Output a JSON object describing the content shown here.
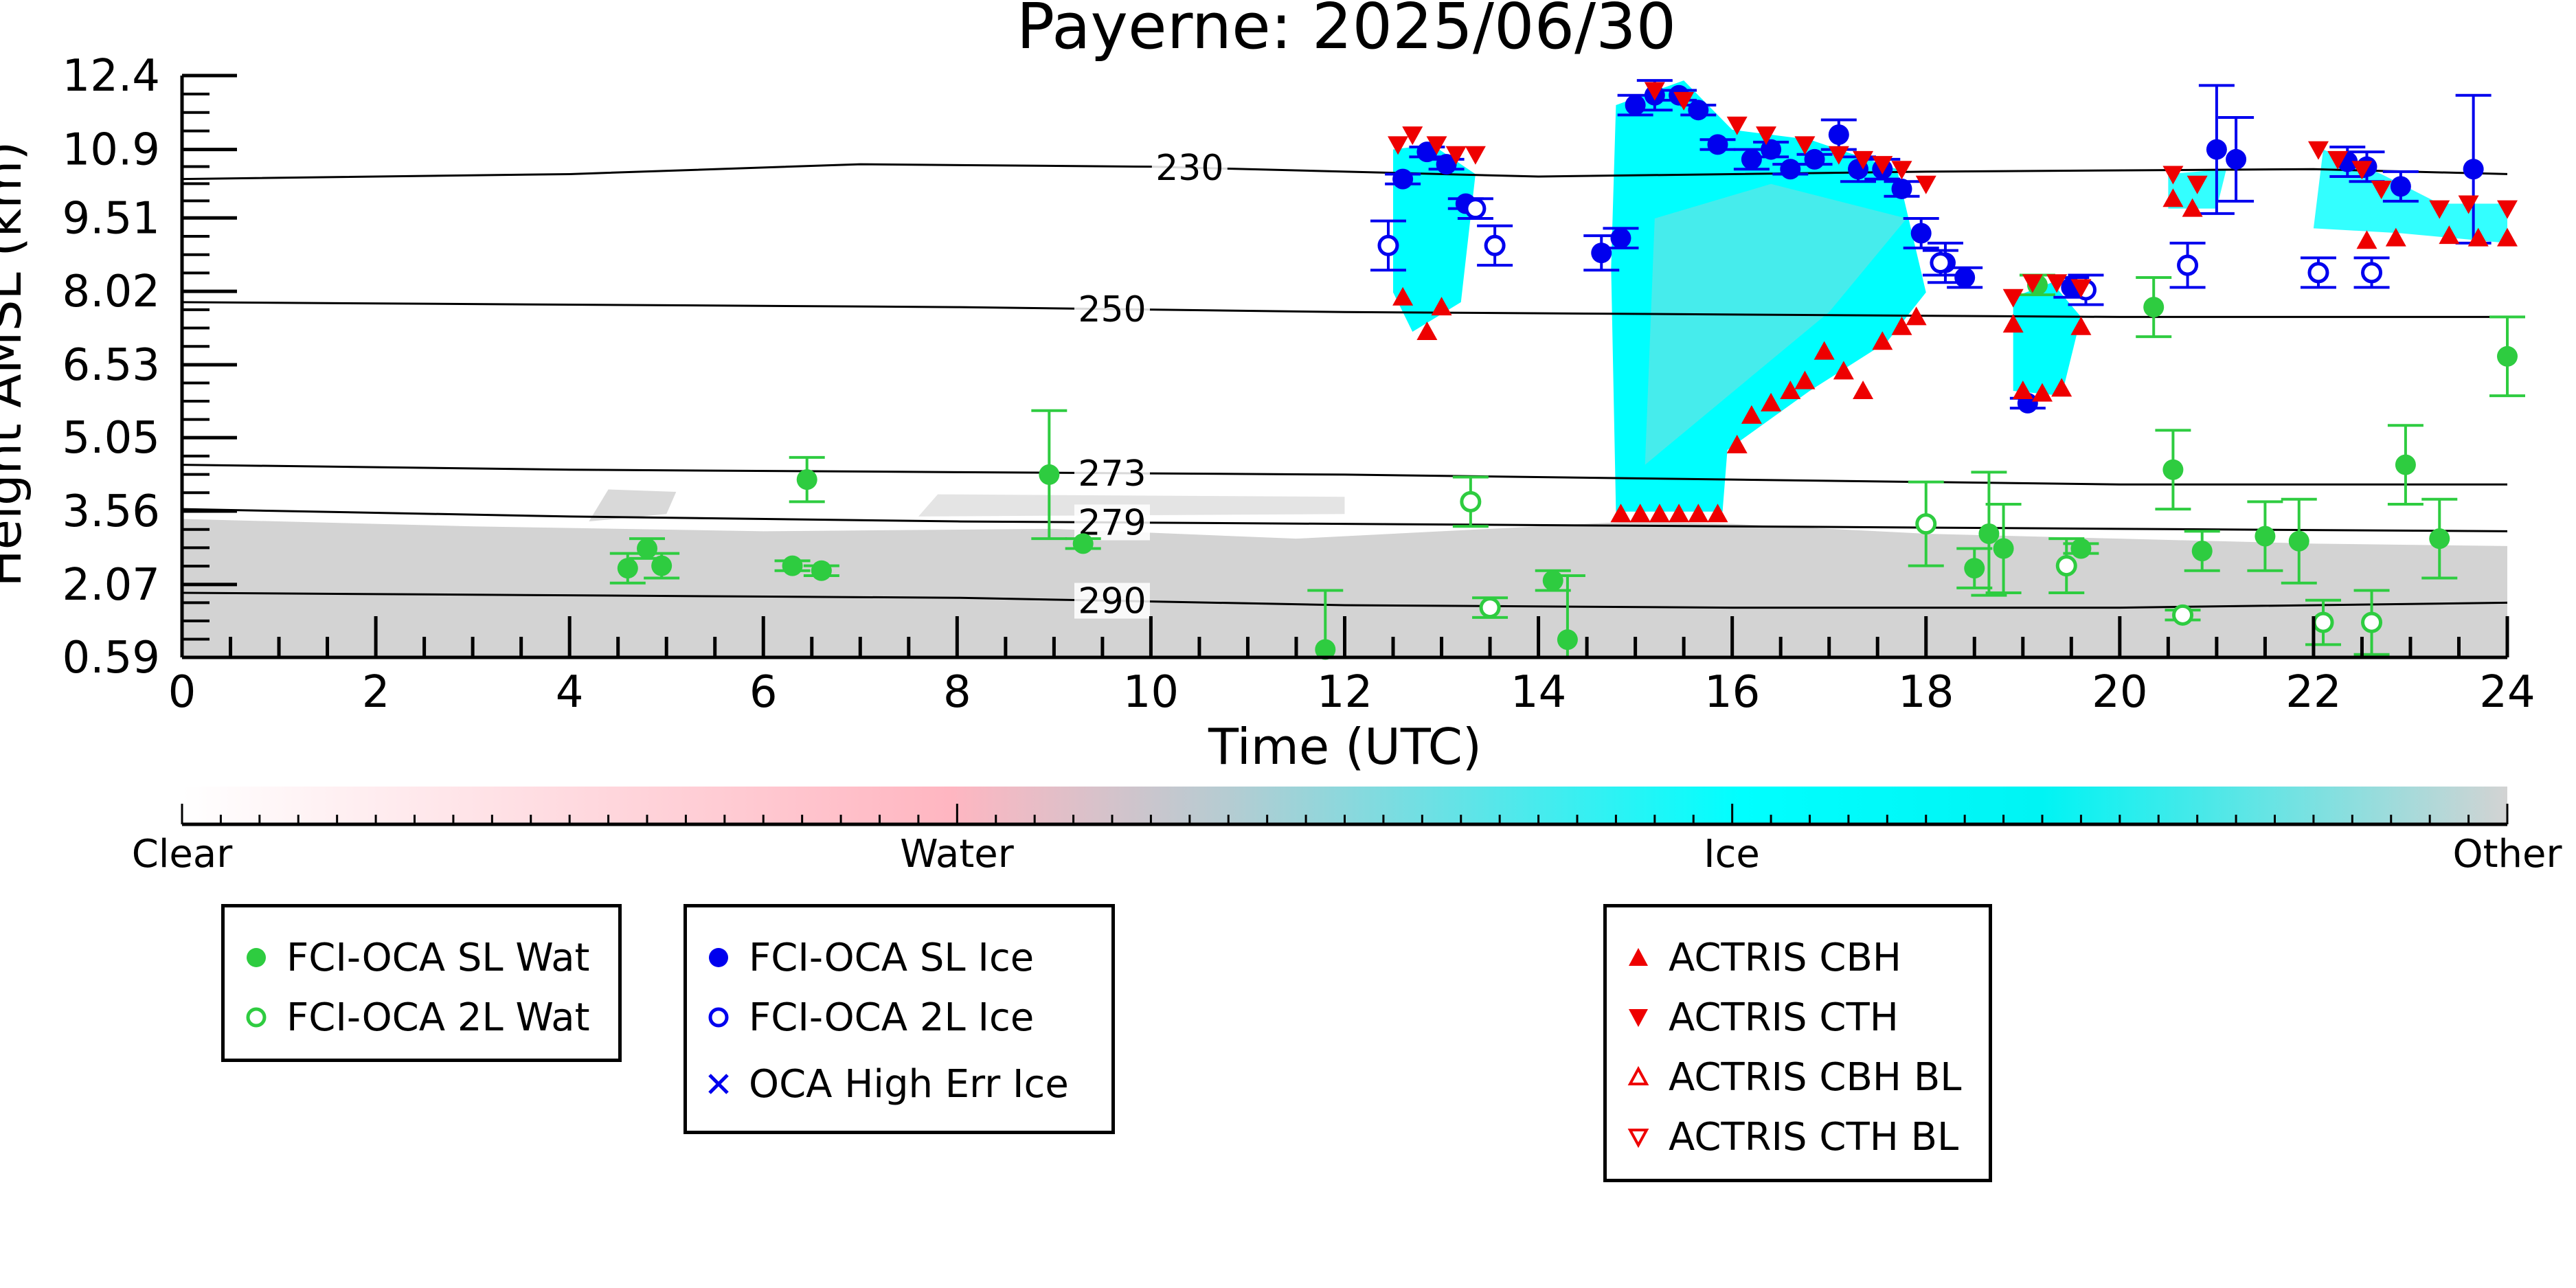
{
  "chart_data": {
    "type": "scatter",
    "title": "Payerne: 2025/06/30",
    "xlabel": "Time (UTC)",
    "ylabel": "Height AMSL (km)",
    "xlim": [
      0,
      24
    ],
    "ylim": [
      0.59,
      12.4
    ],
    "x_ticks": [
      "0",
      "2",
      "4",
      "6",
      "8",
      "10",
      "12",
      "14",
      "16",
      "18",
      "20",
      "22",
      "24"
    ],
    "y_ticks": [
      "0.59",
      "2.07",
      "3.56",
      "5.05",
      "6.53",
      "8.02",
      "9.51",
      "10.9",
      "12.4"
    ],
    "y_tick_values": [
      0.59,
      2.07,
      3.56,
      5.05,
      6.53,
      8.02,
      9.51,
      10.9,
      12.4
    ],
    "grid": false,
    "colorbar": {
      "labels": [
        "Clear",
        "Water",
        "Ice",
        "Other"
      ],
      "colors": [
        "#ffffff",
        "#ffb6c1",
        "#00ffff",
        "#d3d3d3"
      ]
    },
    "isotherms": [
      {
        "label": "230",
        "label_x": 10.4,
        "points": [
          [
            0,
            10.3
          ],
          [
            4,
            10.4
          ],
          [
            7,
            10.6
          ],
          [
            10,
            10.55
          ],
          [
            14,
            10.35
          ],
          [
            18,
            10.45
          ],
          [
            22,
            10.5
          ],
          [
            24,
            10.4
          ]
        ]
      },
      {
        "label": "250",
        "label_x": 9.6,
        "points": [
          [
            0,
            7.8
          ],
          [
            4,
            7.75
          ],
          [
            8,
            7.7
          ],
          [
            12,
            7.6
          ],
          [
            16,
            7.55
          ],
          [
            20,
            7.5
          ],
          [
            24,
            7.5
          ]
        ]
      },
      {
        "label": "273",
        "label_x": 9.6,
        "points": [
          [
            0,
            4.5
          ],
          [
            4,
            4.4
          ],
          [
            8,
            4.35
          ],
          [
            12,
            4.3
          ],
          [
            16,
            4.2
          ],
          [
            20,
            4.1
          ],
          [
            24,
            4.1
          ]
        ]
      },
      {
        "label": "279",
        "label_x": 9.6,
        "points": [
          [
            0,
            3.6
          ],
          [
            4,
            3.45
          ],
          [
            8,
            3.35
          ],
          [
            12,
            3.3
          ],
          [
            16,
            3.25
          ],
          [
            20,
            3.2
          ],
          [
            24,
            3.15
          ]
        ]
      },
      {
        "label": "290",
        "label_x": 9.6,
        "points": [
          [
            0,
            1.9
          ],
          [
            4,
            1.85
          ],
          [
            8,
            1.8
          ],
          [
            12,
            1.65
          ],
          [
            16,
            1.6
          ],
          [
            20,
            1.6
          ],
          [
            24,
            1.7
          ]
        ]
      }
    ],
    "series": [
      {
        "name": "FCI-OCA SL Wat",
        "marker": "circle-filled",
        "color": "#2ecc40",
        "points": [
          [
            4.6,
            2.4,
            0.3
          ],
          [
            4.8,
            2.8,
            0.2
          ],
          [
            4.95,
            2.45,
            0.25
          ],
          [
            6.3,
            2.45,
            0.1
          ],
          [
            6.6,
            2.35,
            0.1
          ],
          [
            6.45,
            4.2,
            0.45
          ],
          [
            8.95,
            4.3,
            1.3
          ],
          [
            9.3,
            2.9,
            0.1
          ],
          [
            11.8,
            0.75,
            1.2
          ],
          [
            14.15,
            2.15,
            0.2
          ],
          [
            14.3,
            0.95,
            1.3
          ],
          [
            18.5,
            2.4,
            0.4
          ],
          [
            18.65,
            3.1,
            1.25
          ],
          [
            18.8,
            2.8,
            0.9
          ],
          [
            19.15,
            8.15,
            0.2
          ],
          [
            19.6,
            2.8,
            0.1
          ],
          [
            20.35,
            7.7,
            0.6
          ],
          [
            20.55,
            4.4,
            0.8
          ],
          [
            20.85,
            2.75,
            0.4
          ],
          [
            21.5,
            3.05,
            0.7
          ],
          [
            21.85,
            2.95,
            0.85
          ],
          [
            22.95,
            4.5,
            0.8
          ],
          [
            23.3,
            3.0,
            0.8
          ],
          [
            24.0,
            6.7,
            0.8
          ]
        ]
      },
      {
        "name": "FCI-OCA 2L Wat",
        "marker": "circle-open",
        "color": "#2ecc40",
        "points": [
          [
            13.3,
            3.75,
            0.5
          ],
          [
            13.5,
            1.6,
            0.2
          ],
          [
            18.0,
            3.3,
            0.85
          ],
          [
            19.45,
            2.45,
            0.55
          ],
          [
            20.65,
            1.45,
            0.1
          ],
          [
            22.1,
            1.3,
            0.45
          ],
          [
            22.6,
            1.3,
            0.65
          ]
        ]
      },
      {
        "name": "FCI-OCA SL Ice",
        "marker": "circle-filled",
        "color": "#0000ee",
        "points": [
          [
            12.6,
            10.3,
            0.1
          ],
          [
            12.85,
            10.85,
            0.1
          ],
          [
            13.05,
            10.6,
            0.1
          ],
          [
            13.25,
            9.8,
            0.1
          ],
          [
            14.65,
            8.8,
            0.35
          ],
          [
            14.85,
            9.1,
            0.2
          ],
          [
            15.0,
            11.8,
            0.2
          ],
          [
            15.2,
            12.0,
            0.3
          ],
          [
            15.45,
            12.0,
            0.1
          ],
          [
            15.65,
            11.7,
            0.1
          ],
          [
            15.85,
            11.0,
            0.1
          ],
          [
            16.2,
            10.7,
            0.2
          ],
          [
            16.4,
            10.9,
            0.15
          ],
          [
            16.6,
            10.5,
            0.1
          ],
          [
            16.85,
            10.7,
            0.1
          ],
          [
            17.1,
            11.2,
            0.3
          ],
          [
            17.3,
            10.5,
            0.25
          ],
          [
            17.55,
            10.5,
            0.2
          ],
          [
            17.75,
            10.1,
            0.15
          ],
          [
            17.95,
            9.2,
            0.3
          ],
          [
            18.2,
            8.6,
            0.4
          ],
          [
            18.4,
            8.3,
            0.2
          ],
          [
            19.05,
            5.75,
            0.1
          ],
          [
            19.5,
            8.1,
            0.2
          ],
          [
            21.0,
            10.9,
            1.3
          ],
          [
            21.2,
            10.7,
            0.85
          ],
          [
            22.35,
            10.65,
            0.3
          ],
          [
            22.55,
            10.55,
            0.3
          ],
          [
            22.9,
            10.15,
            0.3
          ],
          [
            23.65,
            10.5,
            1.5
          ]
        ]
      },
      {
        "name": "FCI-OCA 2L Ice",
        "marker": "circle-open",
        "color": "#0000ee",
        "points": [
          [
            12.45,
            8.95,
            0.5
          ],
          [
            13.35,
            9.7,
            0.2
          ],
          [
            13.55,
            8.95,
            0.4
          ],
          [
            18.15,
            8.6,
            0.25
          ],
          [
            19.65,
            8.05,
            0.3
          ],
          [
            20.7,
            8.55,
            0.45
          ],
          [
            22.05,
            8.4,
            0.3
          ],
          [
            22.6,
            8.4,
            0.3
          ]
        ]
      },
      {
        "name": "OCA High Err Ice",
        "marker": "x",
        "color": "#0000ee",
        "points": []
      },
      {
        "name": "ACTRIS CBH",
        "marker": "triangle-up-filled",
        "color": "#ee0000",
        "points": [
          [
            12.6,
            7.9
          ],
          [
            12.85,
            7.2
          ],
          [
            13.0,
            7.7
          ],
          [
            14.85,
            3.5
          ],
          [
            15.05,
            3.5
          ],
          [
            15.25,
            3.5
          ],
          [
            15.45,
            3.5
          ],
          [
            15.65,
            3.5
          ],
          [
            15.85,
            3.5
          ],
          [
            16.05,
            4.9
          ],
          [
            16.2,
            5.5
          ],
          [
            16.4,
            5.75
          ],
          [
            16.6,
            6.0
          ],
          [
            16.75,
            6.2
          ],
          [
            16.95,
            6.8
          ],
          [
            17.15,
            6.4
          ],
          [
            17.35,
            6.0
          ],
          [
            17.55,
            7.0
          ],
          [
            17.75,
            7.3
          ],
          [
            17.9,
            7.5
          ],
          [
            18.9,
            7.35
          ],
          [
            19.0,
            6.0
          ],
          [
            19.2,
            5.95
          ],
          [
            19.4,
            6.05
          ],
          [
            19.6,
            7.3
          ],
          [
            20.55,
            9.9
          ],
          [
            20.75,
            9.7
          ],
          [
            22.55,
            9.05
          ],
          [
            22.85,
            9.1
          ],
          [
            23.4,
            9.15
          ],
          [
            23.7,
            9.1
          ],
          [
            24.0,
            9.1
          ]
        ]
      },
      {
        "name": "ACTRIS CTH",
        "marker": "triangle-down-filled",
        "color": "#ee0000",
        "points": [
          [
            12.55,
            11.0
          ],
          [
            12.7,
            11.2
          ],
          [
            12.95,
            11.0
          ],
          [
            13.15,
            10.8
          ],
          [
            13.35,
            10.8
          ],
          [
            15.2,
            12.1
          ],
          [
            15.5,
            11.9
          ],
          [
            16.05,
            11.4
          ],
          [
            16.35,
            11.2
          ],
          [
            16.75,
            11.0
          ],
          [
            17.1,
            10.8
          ],
          [
            17.35,
            10.7
          ],
          [
            17.55,
            10.6
          ],
          [
            17.75,
            10.5
          ],
          [
            18.0,
            10.2
          ],
          [
            18.9,
            7.9
          ],
          [
            19.1,
            8.2
          ],
          [
            19.35,
            8.2
          ],
          [
            19.6,
            8.1
          ],
          [
            20.55,
            10.4
          ],
          [
            20.8,
            10.2
          ],
          [
            22.05,
            10.9
          ],
          [
            22.25,
            10.7
          ],
          [
            22.5,
            10.5
          ],
          [
            22.7,
            10.1
          ],
          [
            23.3,
            9.7
          ],
          [
            23.6,
            9.8
          ],
          [
            24.0,
            9.7
          ]
        ]
      },
      {
        "name": "ACTRIS CBH BL",
        "marker": "triangle-up-open",
        "color": "#ee0000",
        "points": []
      },
      {
        "name": "ACTRIS CTH BL",
        "marker": "triangle-down-open",
        "color": "#ee0000",
        "points": []
      }
    ]
  },
  "legend": {
    "wat_sl": "FCI-OCA SL Wat",
    "wat_2l": "FCI-OCA 2L Wat",
    "ice_sl": "FCI-OCA SL Ice",
    "ice_2l": "FCI-OCA 2L Ice",
    "ice_err": "OCA High Err Ice",
    "cbh": "ACTRIS CBH",
    "cth": "ACTRIS CTH",
    "cbh_bl": "ACTRIS CBH BL",
    "cth_bl": "ACTRIS CTH BL"
  }
}
